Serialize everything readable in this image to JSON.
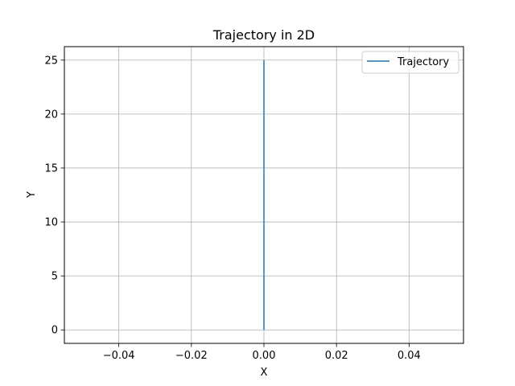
{
  "chart_data": {
    "type": "line",
    "title": "Trajectory in 2D",
    "xlabel": "X",
    "ylabel": "Y",
    "xlim": [
      -0.055,
      0.055
    ],
    "ylim": [
      -1.25,
      26.25
    ],
    "grid": true,
    "legend": {
      "position": "top-right"
    },
    "x_ticks": [
      -0.04,
      -0.02,
      0.0,
      0.02,
      0.04
    ],
    "x_tick_labels": [
      "−0.04",
      "−0.02",
      "0.00",
      "0.02",
      "0.04"
    ],
    "y_ticks": [
      0,
      5,
      10,
      15,
      20,
      25
    ],
    "y_tick_labels": [
      "0",
      "5",
      "10",
      "15",
      "20",
      "25"
    ],
    "series": [
      {
        "name": "Trajectory",
        "color": "#1f77b4",
        "x": [
          0.0,
          0.0
        ],
        "y": [
          0,
          25
        ]
      }
    ]
  }
}
